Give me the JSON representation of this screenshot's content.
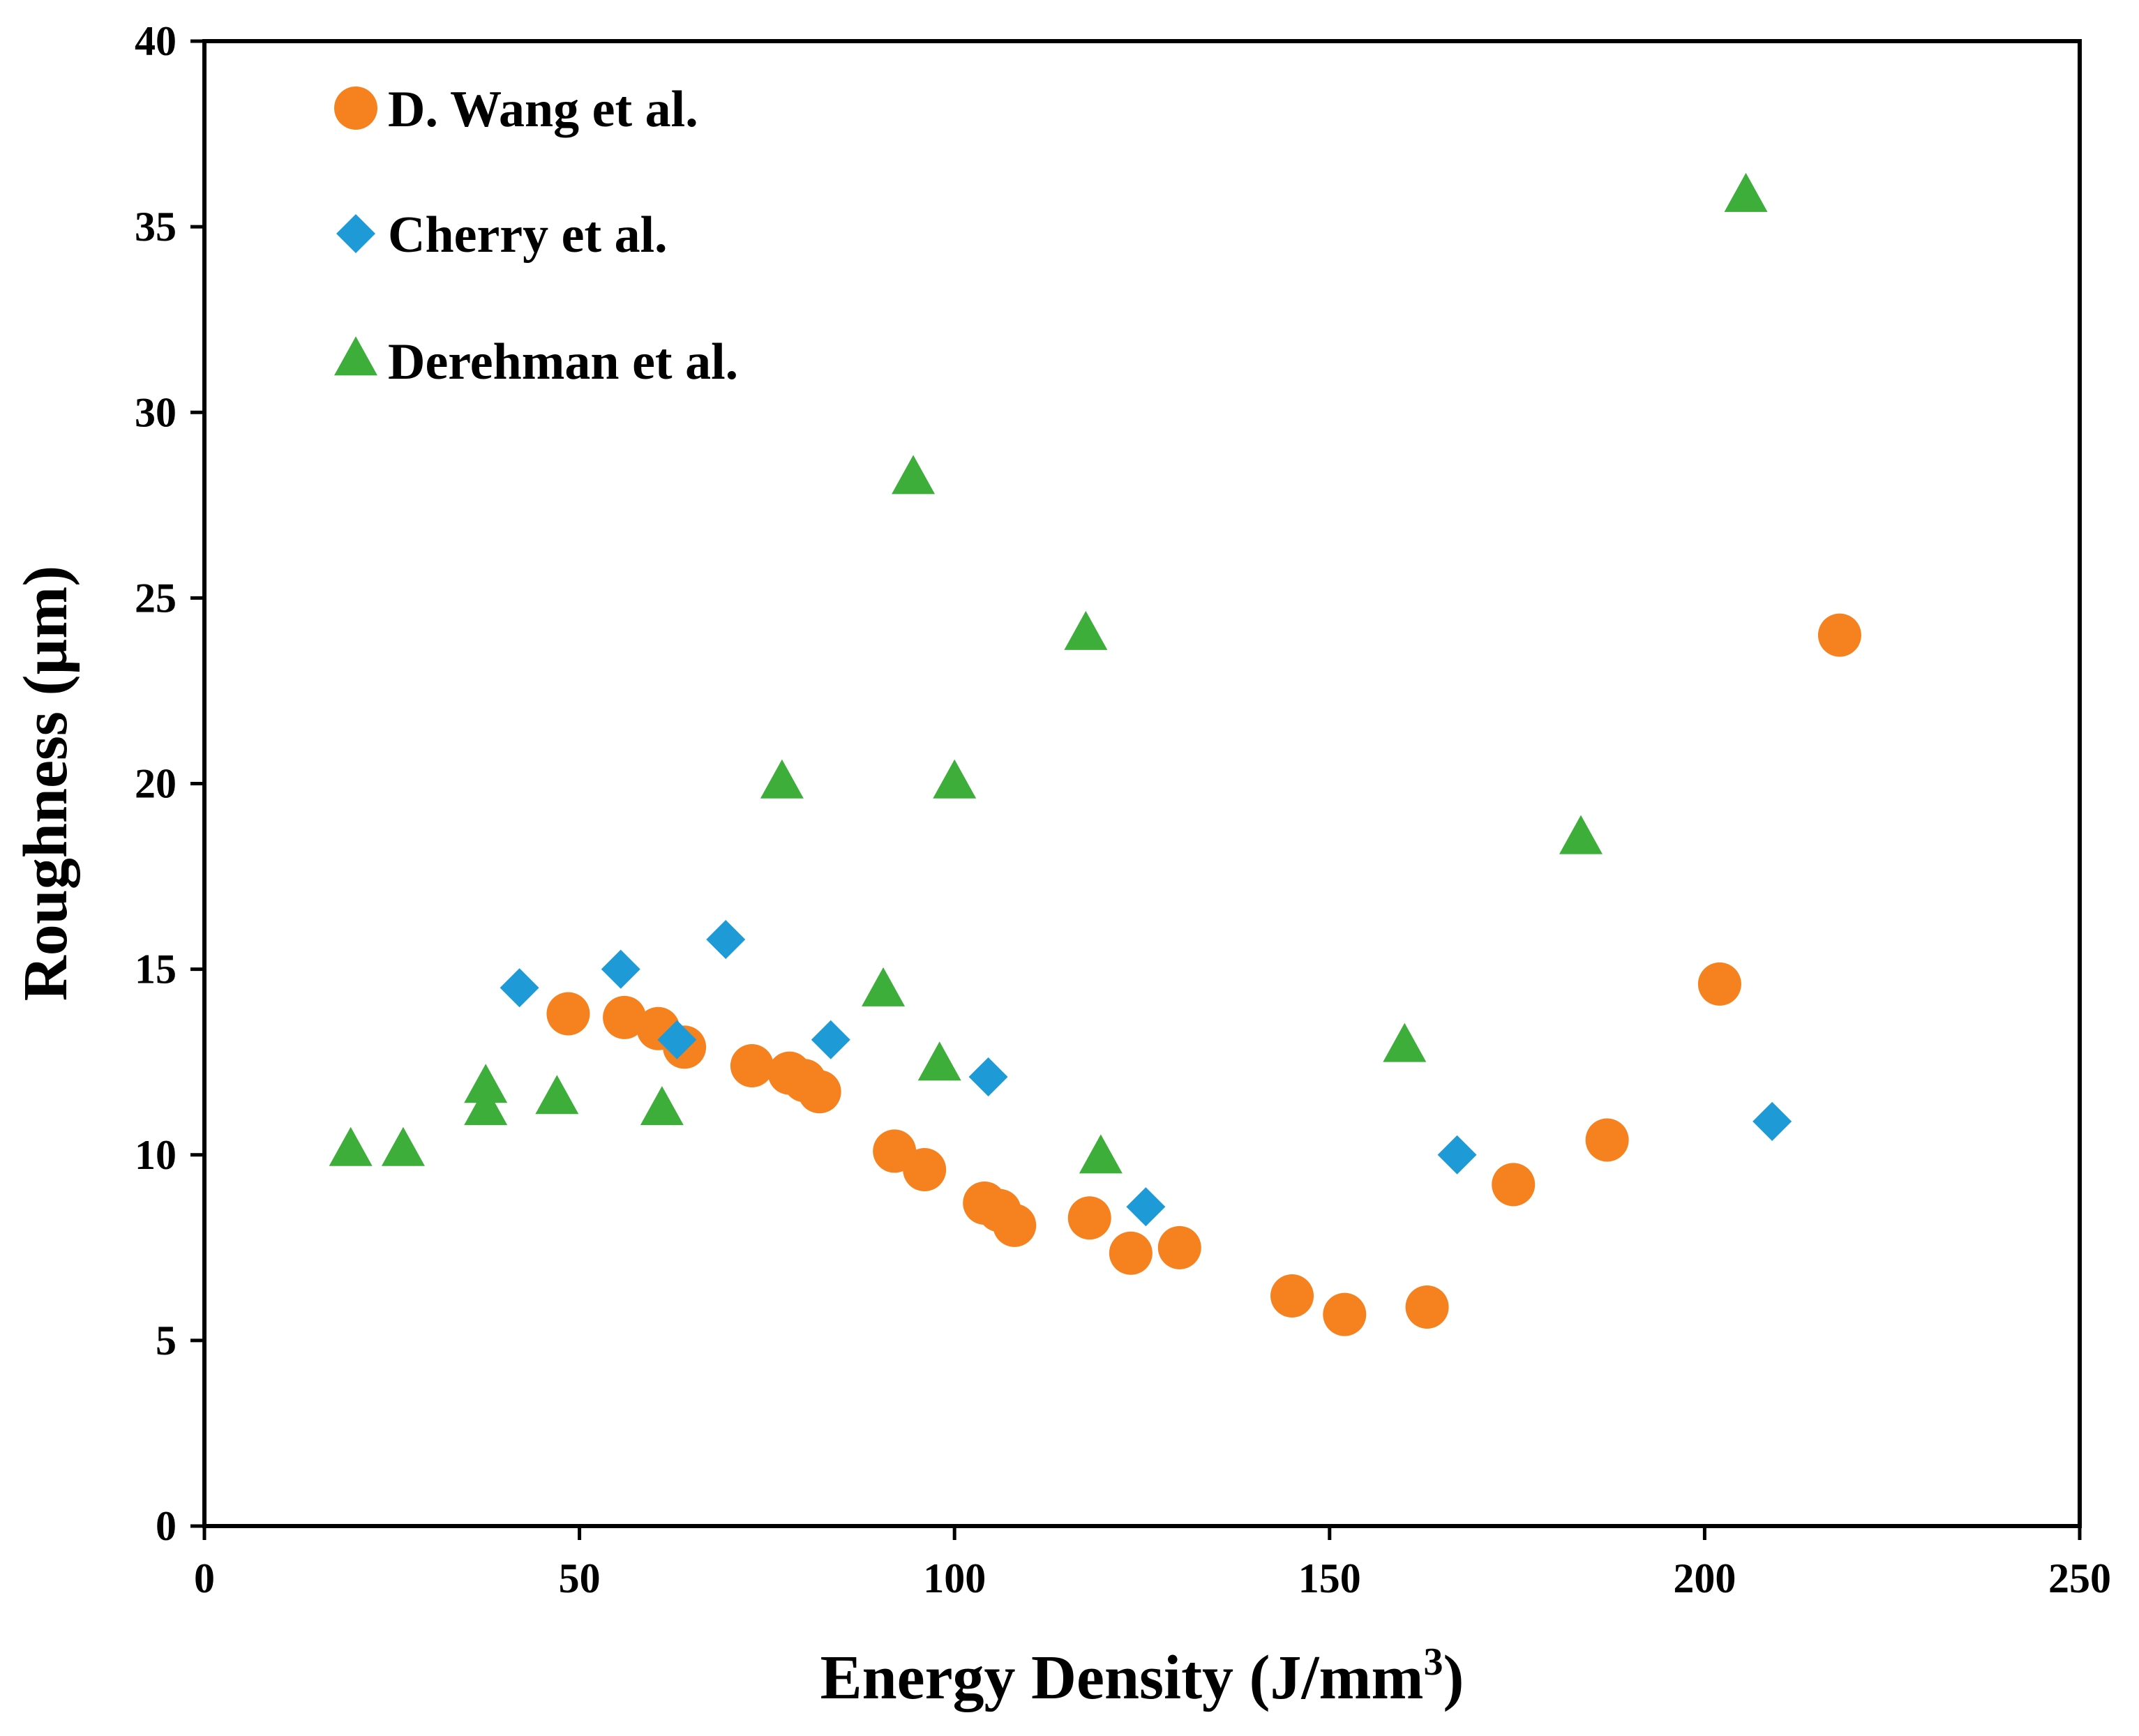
{
  "chart_data": {
    "type": "scatter",
    "title": "",
    "xlabel": "Energy Density (J/mm",
    "xlabel_superscript": "3",
    "xlabel_suffix": ")",
    "ylabel": "Roughness (µm)",
    "xlim": [
      0,
      250
    ],
    "ylim": [
      0,
      40
    ],
    "xticks": [
      0,
      50,
      100,
      150,
      200,
      250
    ],
    "yticks": [
      0,
      5,
      10,
      15,
      20,
      25,
      30,
      35,
      40
    ],
    "grid": false,
    "legend_position": "top-left",
    "series": [
      {
        "name": "D. Wang et al.",
        "marker": "circle",
        "color": "#F5821F",
        "points": [
          [
            48.5,
            13.8
          ],
          [
            56,
            13.7
          ],
          [
            60.5,
            13.4
          ],
          [
            64,
            12.9
          ],
          [
            73,
            12.4
          ],
          [
            78,
            12.2
          ],
          [
            80,
            12.0
          ],
          [
            82,
            11.7
          ],
          [
            92,
            10.1
          ],
          [
            96,
            9.6
          ],
          [
            104,
            8.7
          ],
          [
            106,
            8.5
          ],
          [
            108,
            8.1
          ],
          [
            118,
            8.3
          ],
          [
            123.5,
            7.35
          ],
          [
            130,
            7.5
          ],
          [
            145,
            6.2
          ],
          [
            152,
            5.7
          ],
          [
            163,
            5.9
          ],
          [
            174.5,
            9.2
          ],
          [
            187,
            10.4
          ],
          [
            202,
            14.6
          ],
          [
            218,
            24.0
          ]
        ]
      },
      {
        "name": "Cherry et al.",
        "marker": "diamond",
        "color": "#1E9BD7",
        "points": [
          [
            42,
            14.5
          ],
          [
            55.5,
            15.0
          ],
          [
            63,
            13.1
          ],
          [
            69.5,
            15.8
          ],
          [
            83.5,
            13.1
          ],
          [
            104.5,
            12.1
          ],
          [
            125.5,
            8.6
          ],
          [
            167,
            10.0
          ],
          [
            209,
            10.9
          ]
        ]
      },
      {
        "name": "Derehman et al.",
        "marker": "triangle",
        "color": "#3DAE3A",
        "points": [
          [
            19.5,
            10.1
          ],
          [
            26.5,
            10.1
          ],
          [
            37.5,
            11.2
          ],
          [
            37.5,
            11.8
          ],
          [
            47,
            11.5
          ],
          [
            61,
            11.2
          ],
          [
            77,
            20.0
          ],
          [
            90.5,
            14.4
          ],
          [
            94.5,
            28.2
          ],
          [
            98,
            12.4
          ],
          [
            100,
            20.0
          ],
          [
            117.5,
            24.0
          ],
          [
            119.5,
            9.9
          ],
          [
            160,
            12.9
          ],
          [
            183.5,
            18.5
          ],
          [
            205.5,
            35.8
          ]
        ]
      }
    ]
  }
}
